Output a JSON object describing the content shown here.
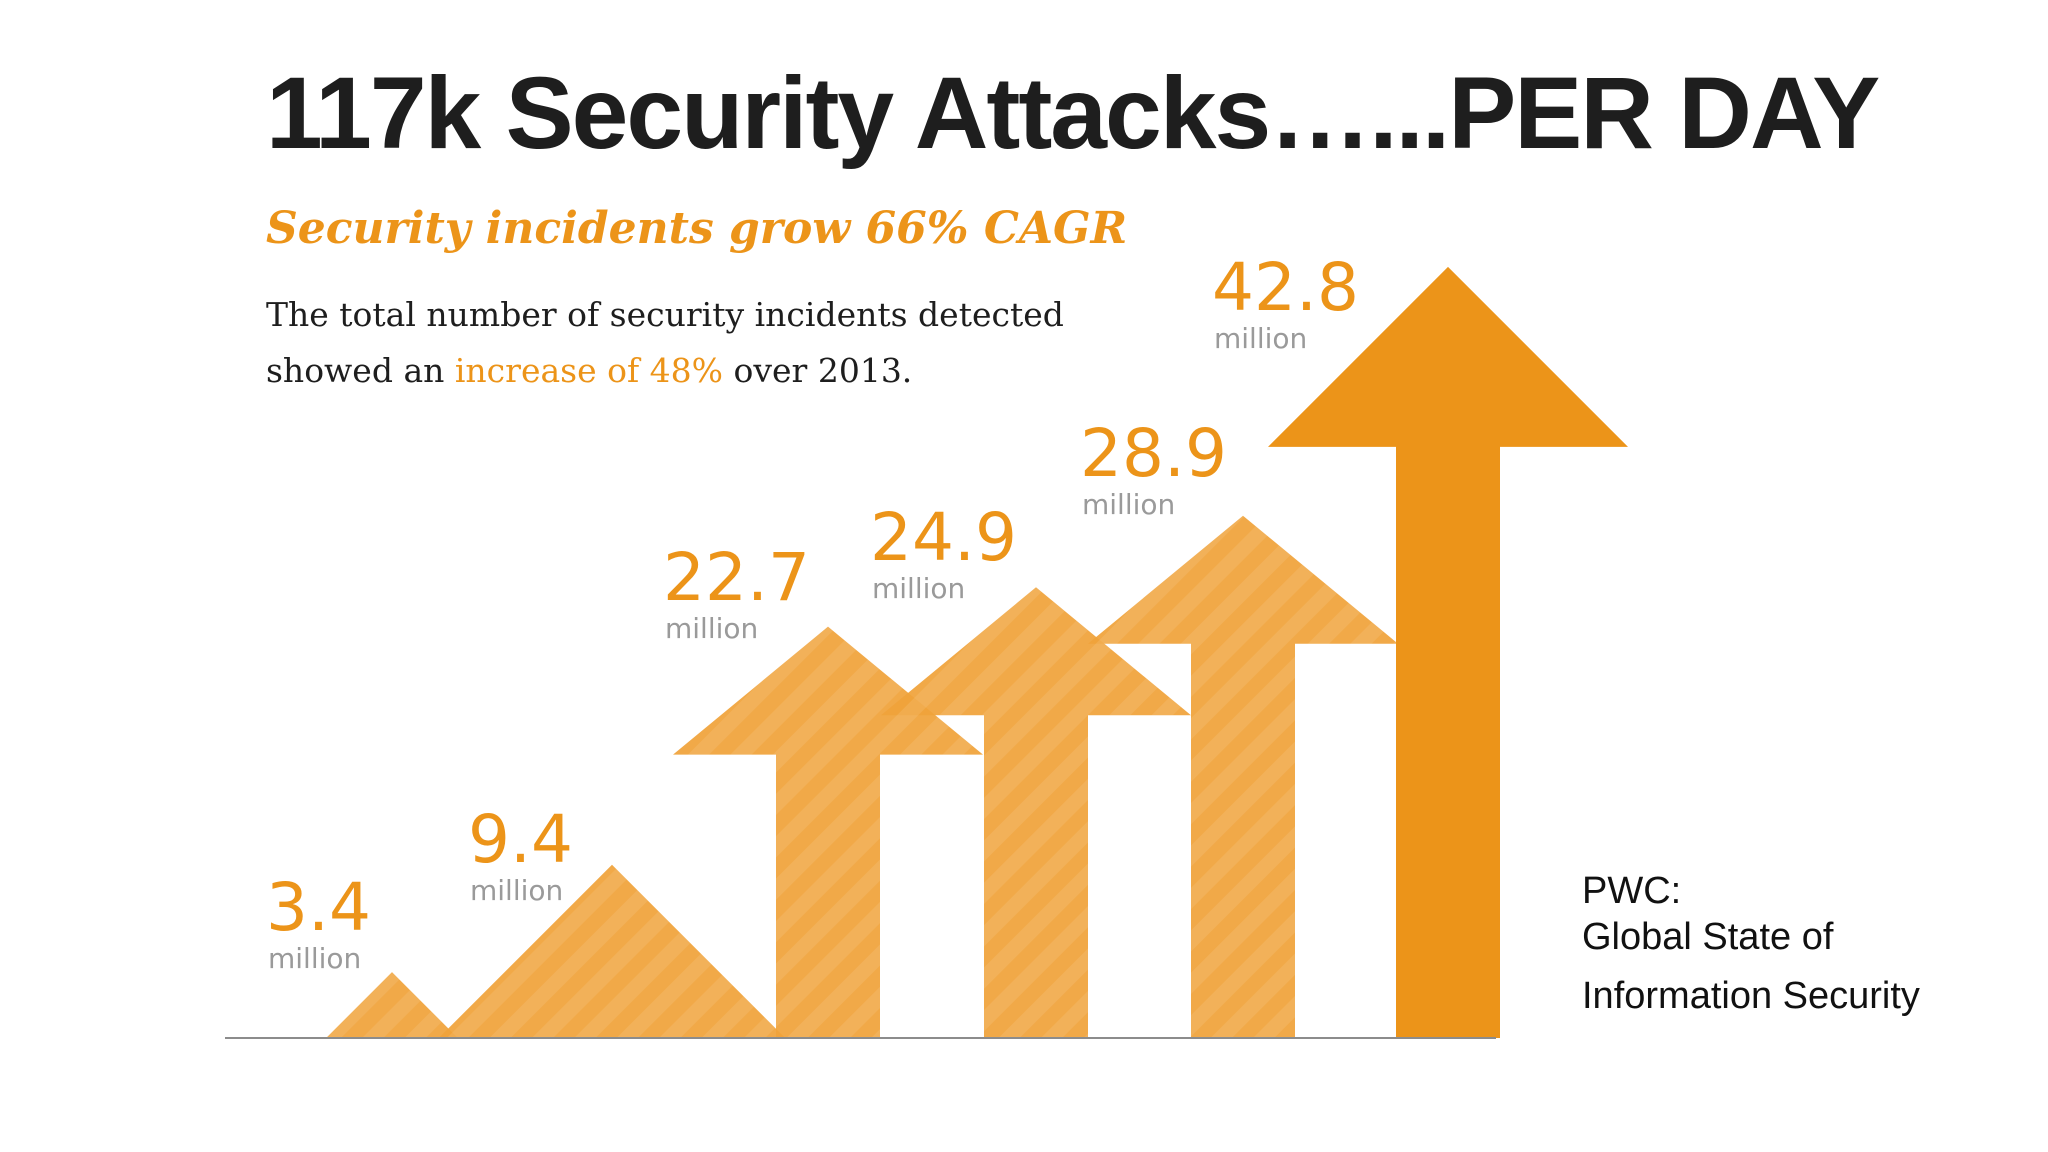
{
  "title": "117k Security Attacks…...PER DAY",
  "source": {
    "line1": "PWC:",
    "line2": "Global State of",
    "line3": "Information Security"
  },
  "chart_data": {
    "type": "bar",
    "title": "Security incidents grow 66% CAGR",
    "description": {
      "before": "The total number of security incidents detected showed an ",
      "highlight": "increase of 48%",
      "after": " over 2013."
    },
    "unit": "million",
    "values": [
      3.4,
      9.4,
      22.7,
      24.9,
      28.9,
      42.8
    ],
    "value_labels": [
      "3.4",
      "9.4",
      "22.7",
      "24.9",
      "28.9",
      "42.8"
    ],
    "colors": {
      "arrow": "#ec9419",
      "arrow_alpha": "#f0a33a",
      "overlap": "#e16f12",
      "baseline": "#8c8c8c"
    }
  }
}
